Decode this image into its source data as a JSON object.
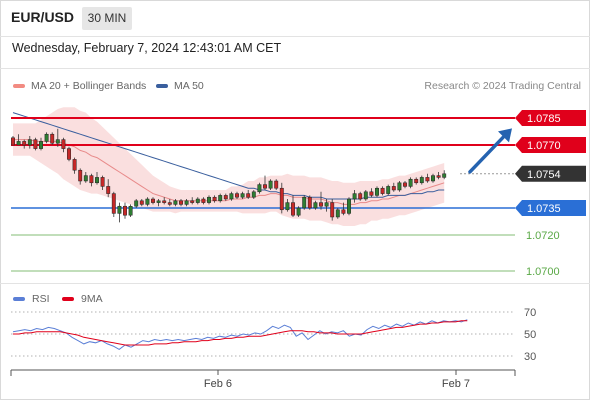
{
  "header": {
    "symbol": "EUR/USD",
    "timeframe": "30 MIN",
    "datetime": "Wednesday, February 7, 2024 12:43:01 AM CET",
    "credit": "Research © 2024 Trading Central"
  },
  "colors": {
    "bullish": "#2e7d32",
    "bearish": "#c62828",
    "resistance": "#e0001b",
    "support": "#2a6fd6",
    "weak_support": "#5aa846",
    "ma50": "#3a5f9e",
    "bollinger": "#f8d4d4",
    "current_price": "#333333",
    "rsi": "#5b7fd6",
    "rsi_ma": "#e0001b",
    "arrow": "#2563b0"
  },
  "chart_data": [
    {
      "type": "candlestick",
      "title": "",
      "legend": [
        {
          "name": "MA 20 + Bollinger Bands",
          "color": "#f28b82"
        },
        {
          "name": "MA 50",
          "color": "#3a5f9e"
        }
      ],
      "legend_position": "top-left",
      "ylim": [
        1.0695,
        1.0795
      ],
      "x_tick_labels": [
        {
          "label": "Feb 6",
          "index": 41
        },
        {
          "label": "Feb 7",
          "index": 89
        }
      ],
      "levels": [
        {
          "label": "1.0785",
          "value": 1.0785,
          "kind": "resistance"
        },
        {
          "label": "1.0770",
          "value": 1.077,
          "kind": "resistance"
        },
        {
          "label": "1.0754",
          "value": 1.0754,
          "kind": "current"
        },
        {
          "label": "1.0735",
          "value": 1.0735,
          "kind": "support"
        },
        {
          "label": "1.0720",
          "value": 1.072,
          "kind": "weak"
        },
        {
          "label": "1.0700",
          "value": 1.07,
          "kind": "weak"
        }
      ],
      "candles": [
        [
          1.0774,
          1.0775,
          1.077,
          1.077
        ],
        [
          1.077,
          1.0776,
          1.077,
          1.0772
        ],
        [
          1.0772,
          1.0773,
          1.0768,
          1.077
        ],
        [
          1.077,
          1.0775,
          1.0768,
          1.0773
        ],
        [
          1.0773,
          1.0774,
          1.0767,
          1.0768
        ],
        [
          1.0768,
          1.0774,
          1.0767,
          1.0772
        ],
        [
          1.0772,
          1.0777,
          1.0771,
          1.0776
        ],
        [
          1.0776,
          1.0777,
          1.077,
          1.0771
        ],
        [
          1.0771,
          1.0779,
          1.0769,
          1.0773
        ],
        [
          1.0773,
          1.0774,
          1.0766,
          1.0768
        ],
        [
          1.0768,
          1.0769,
          1.0761,
          1.0762
        ],
        [
          1.0762,
          1.0763,
          1.0754,
          1.0756
        ],
        [
          1.0756,
          1.0757,
          1.0748,
          1.075
        ],
        [
          1.075,
          1.0755,
          1.0749,
          1.0753
        ],
        [
          1.0753,
          1.0754,
          1.0747,
          1.0749
        ],
        [
          1.0749,
          1.0755,
          1.0748,
          1.0752
        ],
        [
          1.0752,
          1.0753,
          1.0745,
          1.0747
        ],
        [
          1.0747,
          1.0751,
          1.0741,
          1.0743
        ],
        [
          1.0743,
          1.0744,
          1.073,
          1.0732
        ],
        [
          1.0732,
          1.0738,
          1.0727,
          1.0736
        ],
        [
          1.0736,
          1.0738,
          1.0729,
          1.0731
        ],
        [
          1.0731,
          1.0737,
          1.073,
          1.0736
        ],
        [
          1.0736,
          1.074,
          1.0735,
          1.0739
        ],
        [
          1.0739,
          1.074,
          1.0736,
          1.0737
        ],
        [
          1.0737,
          1.0741,
          1.0736,
          1.074
        ],
        [
          1.074,
          1.0741,
          1.0737,
          1.0738
        ],
        [
          1.0738,
          1.074,
          1.0736,
          1.0739
        ],
        [
          1.0739,
          1.0741,
          1.0737,
          1.0738
        ],
        [
          1.0738,
          1.074,
          1.0736,
          1.0737
        ],
        [
          1.0737,
          1.074,
          1.0736,
          1.0739
        ],
        [
          1.0739,
          1.074,
          1.0736,
          1.0737
        ],
        [
          1.0737,
          1.074,
          1.0736,
          1.0739
        ],
        [
          1.0739,
          1.0741,
          1.0737,
          1.0738
        ],
        [
          1.0738,
          1.0741,
          1.0737,
          1.074
        ],
        [
          1.074,
          1.0741,
          1.0737,
          1.0738
        ],
        [
          1.0738,
          1.0742,
          1.0737,
          1.0741
        ],
        [
          1.0741,
          1.0742,
          1.0738,
          1.0739
        ],
        [
          1.0739,
          1.0743,
          1.0738,
          1.0742
        ],
        [
          1.0742,
          1.0743,
          1.0739,
          1.074
        ],
        [
          1.074,
          1.0744,
          1.0739,
          1.0743
        ],
        [
          1.0743,
          1.0744,
          1.074,
          1.0741
        ],
        [
          1.0741,
          1.0744,
          1.074,
          1.0743
        ],
        [
          1.0743,
          1.0745,
          1.074,
          1.0741
        ],
        [
          1.0741,
          1.0745,
          1.074,
          1.0744
        ],
        [
          1.0744,
          1.0749,
          1.0743,
          1.0748
        ],
        [
          1.0748,
          1.0753,
          1.0745,
          1.0746
        ],
        [
          1.0746,
          1.0751,
          1.0745,
          1.075
        ],
        [
          1.075,
          1.0751,
          1.0745,
          1.0746
        ],
        [
          1.0746,
          1.0749,
          1.0732,
          1.0734
        ],
        [
          1.0734,
          1.074,
          1.0733,
          1.0738
        ],
        [
          1.0738,
          1.0742,
          1.073,
          1.0731
        ],
        [
          1.0731,
          1.0736,
          1.073,
          1.0735
        ],
        [
          1.0735,
          1.0742,
          1.0734,
          1.0741
        ],
        [
          1.0741,
          1.0742,
          1.0734,
          1.0735
        ],
        [
          1.0735,
          1.0739,
          1.0734,
          1.0738
        ],
        [
          1.0738,
          1.0744,
          1.0734,
          1.0736
        ],
        [
          1.0736,
          1.074,
          1.0733,
          1.0738
        ],
        [
          1.0738,
          1.074,
          1.0728,
          1.073
        ],
        [
          1.073,
          1.0735,
          1.0729,
          1.0734
        ],
        [
          1.0734,
          1.0738,
          1.0731,
          1.0732
        ],
        [
          1.0732,
          1.0741,
          1.0731,
          1.074
        ],
        [
          1.074,
          1.0745,
          1.0738,
          1.0743
        ],
        [
          1.0743,
          1.0744,
          1.0739,
          1.074
        ],
        [
          1.074,
          1.0745,
          1.0739,
          1.0744
        ],
        [
          1.0744,
          1.0746,
          1.0741,
          1.0742
        ],
        [
          1.0742,
          1.0747,
          1.0741,
          1.0746
        ],
        [
          1.0746,
          1.0747,
          1.0742,
          1.0743
        ],
        [
          1.0743,
          1.0748,
          1.0742,
          1.0747
        ],
        [
          1.0747,
          1.0749,
          1.0744,
          1.0745
        ],
        [
          1.0745,
          1.075,
          1.0744,
          1.0749
        ],
        [
          1.0749,
          1.075,
          1.0746,
          1.0747
        ],
        [
          1.0747,
          1.0752,
          1.0746,
          1.0751
        ],
        [
          1.0751,
          1.0752,
          1.0748,
          1.0749
        ],
        [
          1.0749,
          1.0753,
          1.0748,
          1.0752
        ],
        [
          1.0752,
          1.0754,
          1.0749,
          1.075
        ],
        [
          1.075,
          1.0754,
          1.0749,
          1.0753
        ],
        [
          1.0753,
          1.0755,
          1.0751,
          1.0752
        ],
        [
          1.0752,
          1.0756,
          1.0751,
          1.0754
        ]
      ],
      "ma50": [
        1.0788,
        1.0787,
        1.0786,
        1.0785,
        1.0784,
        1.0783,
        1.0782,
        1.0781,
        1.078,
        1.0779,
        1.0778,
        1.0777,
        1.0776,
        1.0775,
        1.0774,
        1.0773,
        1.0772,
        1.0771,
        1.077,
        1.0769,
        1.0768,
        1.0767,
        1.0766,
        1.0765,
        1.0764,
        1.0763,
        1.0762,
        1.0761,
        1.076,
        1.0759,
        1.0758,
        1.0757,
        1.0756,
        1.0755,
        1.0754,
        1.0753,
        1.0752,
        1.0751,
        1.075,
        1.0749,
        1.0748,
        1.0747,
        1.0746,
        1.0746,
        1.0745,
        1.0745,
        1.0744,
        1.0744,
        1.0743,
        1.0743,
        1.0742,
        1.0742,
        1.0742,
        1.0741,
        1.0741,
        1.0741,
        1.074,
        1.074,
        1.074,
        1.074,
        1.074,
        1.074,
        1.074,
        1.0741,
        1.0741,
        1.0741,
        1.0741,
        1.0742,
        1.0742,
        1.0742,
        1.0742,
        1.0743,
        1.0743,
        1.0743,
        1.0744,
        1.0744,
        1.0745,
        1.0745
      ],
      "ma20": [
        1.0773,
        1.0773,
        1.0773,
        1.0773,
        1.0772,
        1.0772,
        1.0772,
        1.0772,
        1.0772,
        1.0771,
        1.077,
        1.0769,
        1.0767,
        1.0766,
        1.0764,
        1.0763,
        1.0761,
        1.0759,
        1.0757,
        1.0755,
        1.0753,
        1.0751,
        1.0749,
        1.0747,
        1.0745,
        1.0743,
        1.0742,
        1.0741,
        1.074,
        1.0739,
        1.0739,
        1.0739,
        1.0739,
        1.0739,
        1.0739,
        1.0739,
        1.0739,
        1.0739,
        1.0739,
        1.074,
        1.074,
        1.074,
        1.0741,
        1.0741,
        1.0742,
        1.0742,
        1.0743,
        1.0743,
        1.0742,
        1.0742,
        1.0741,
        1.0741,
        1.0741,
        1.074,
        1.074,
        1.074,
        1.0739,
        1.0738,
        1.0738,
        1.0737,
        1.0737,
        1.0737,
        1.0738,
        1.0738,
        1.0739,
        1.0739,
        1.074,
        1.074,
        1.0741,
        1.0742,
        1.0742,
        1.0743,
        1.0744,
        1.0745,
        1.0746,
        1.0747,
        1.0748,
        1.0749
      ],
      "bb_width": [
        0.0009,
        0.0009,
        0.0009,
        0.0009,
        0.001,
        0.0012,
        0.0014,
        0.0016,
        0.0018,
        0.002,
        0.0021,
        0.0022,
        0.0022,
        0.0022,
        0.0021,
        0.002,
        0.0019,
        0.0018,
        0.0017,
        0.0016,
        0.0015,
        0.0014,
        0.0013,
        0.0012,
        0.0011,
        0.001,
        0.0009,
        0.0008,
        0.0007,
        0.0007,
        0.0006,
        0.0006,
        0.0006,
        0.0006,
        0.0006,
        0.0006,
        0.0006,
        0.0006,
        0.0006,
        0.0007,
        0.0007,
        0.0008,
        0.0009,
        0.0009,
        0.001,
        0.001,
        0.001,
        0.001,
        0.0011,
        0.0012,
        0.0012,
        0.0012,
        0.0012,
        0.0012,
        0.0012,
        0.0012,
        0.0012,
        0.0012,
        0.0012,
        0.0012,
        0.0012,
        0.0012,
        0.0012,
        0.0012,
        0.0011,
        0.0011,
        0.0011,
        0.0011,
        0.0011,
        0.0011,
        0.0011,
        0.0011,
        0.0011,
        0.0011,
        0.0011,
        0.0011,
        0.0011,
        0.0011
      ],
      "forecast_arrow": {
        "from_value": 1.0754,
        "to_value": 1.0777
      }
    },
    {
      "type": "line",
      "title": "",
      "legend": [
        {
          "name": "RSI",
          "color": "#5b7fd6"
        },
        {
          "name": "9MA",
          "color": "#e0001b"
        }
      ],
      "ylim": [
        20,
        80
      ],
      "y_tick_labels": [
        {
          "label": "70",
          "value": 70
        },
        {
          "label": "50",
          "value": 50
        },
        {
          "label": "30",
          "value": 30
        }
      ],
      "series": [
        {
          "name": "RSI",
          "values": [
            52,
            53,
            54,
            53,
            55,
            54,
            56,
            55,
            53,
            51,
            47,
            44,
            41,
            43,
            42,
            44,
            41,
            39,
            36,
            40,
            38,
            41,
            44,
            43,
            45,
            44,
            45,
            44,
            45,
            44,
            45,
            46,
            45,
            47,
            46,
            48,
            47,
            49,
            48,
            50,
            49,
            51,
            50,
            53,
            57,
            55,
            58,
            56,
            48,
            51,
            45,
            49,
            53,
            50,
            52,
            51,
            53,
            48,
            50,
            49,
            54,
            57,
            55,
            58,
            56,
            59,
            57,
            60,
            58,
            61,
            59,
            62,
            60,
            62,
            61,
            62,
            61,
            63
          ]
        },
        {
          "name": "9MA",
          "values": [
            50,
            50,
            51,
            51,
            52,
            52,
            52,
            52,
            52,
            51,
            50,
            49,
            47,
            46,
            45,
            44,
            43,
            42,
            41,
            40,
            40,
            40,
            40,
            40,
            41,
            41,
            41,
            42,
            42,
            43,
            43,
            43,
            44,
            44,
            45,
            45,
            46,
            46,
            47,
            47,
            48,
            48,
            48,
            49,
            50,
            51,
            52,
            53,
            53,
            53,
            52,
            52,
            51,
            51,
            51,
            50,
            50,
            50,
            50,
            50,
            51,
            52,
            53,
            54,
            55,
            56,
            56,
            57,
            58,
            59,
            59,
            60,
            60,
            61,
            61,
            61,
            62,
            62
          ]
        }
      ],
      "x_tick_labels": [
        {
          "label": "Feb 6",
          "index": 41
        },
        {
          "label": "Feb 7",
          "index": 89
        }
      ]
    }
  ]
}
